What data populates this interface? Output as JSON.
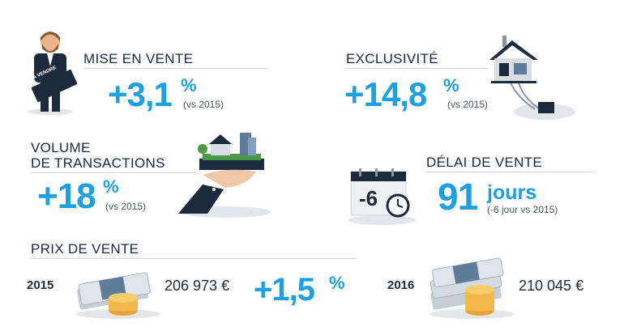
{
  "mise_en_vente": {
    "label": "MISE EN VENTE",
    "value": "+3,1",
    "percent": "%",
    "comparison": "(vs 2015)",
    "sign_text": "A VENDRE"
  },
  "exclusivite": {
    "label": "EXCLUSIVITÉ",
    "value": "+14,8",
    "percent": "%",
    "comparison": "(vs 2015)"
  },
  "volume": {
    "label_line1": "VOLUME",
    "label_line2": "DE TRANSACTIONS",
    "value": "+18",
    "percent": "%",
    "comparison": "(vs 2015)"
  },
  "delai": {
    "label": "DÉLAI DE VENTE",
    "value": "91",
    "unit": "jours",
    "comparison": "(-6 jour vs 2015)",
    "calendar_text": "-6"
  },
  "prix": {
    "label": "PRIX DE VENTE",
    "year_left": "2015",
    "amount_left": "206 973 €",
    "change": "+1,5",
    "percent": "%",
    "year_right": "2016",
    "amount_right": "210 045 €"
  },
  "colors": {
    "accent": "#1e9fe0",
    "navy": "#1c2a3b"
  }
}
